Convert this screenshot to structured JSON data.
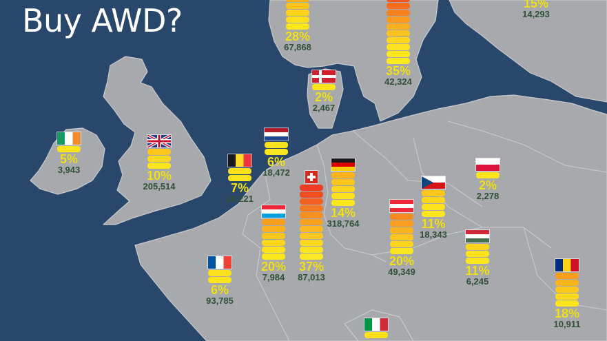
{
  "title": "Buy AWD?",
  "colors": {
    "sea": "#29476b",
    "land": "#a7a9ac",
    "border": "#c9cbce",
    "pct": "#f2e21a",
    "count": "#2f5036"
  },
  "countries": [
    {
      "id": "norway",
      "pct": "28%",
      "count": "67,868",
      "bar_level": 0.28
    },
    {
      "id": "sweden",
      "pct": "35%",
      "count": "42,324",
      "bar_level": 0.35
    },
    {
      "id": "finland",
      "pct": "15%",
      "count": "14,293",
      "bar_level": 0.15
    },
    {
      "id": "denmark",
      "pct": "2%",
      "count": "2,467",
      "bar_level": 0.02
    },
    {
      "id": "ireland",
      "pct": "5%",
      "count": "3,943",
      "bar_level": 0.05
    },
    {
      "id": "uk",
      "pct": "10%",
      "count": "205,514",
      "bar_level": 0.1
    },
    {
      "id": "netherlands",
      "pct": "6%",
      "count": "18,472",
      "bar_level": 0.06
    },
    {
      "id": "belgium",
      "pct": "7%",
      "count": "28,221",
      "bar_level": 0.07
    },
    {
      "id": "luxembourg",
      "pct": "20%",
      "count": "7,984",
      "bar_level": 0.2
    },
    {
      "id": "switzerland",
      "pct": "37%",
      "count": "87,013",
      "bar_level": 0.37
    },
    {
      "id": "germany",
      "pct": "14%",
      "count": "318,764",
      "bar_level": 0.14
    },
    {
      "id": "austria",
      "pct": "20%",
      "count": "49,349",
      "bar_level": 0.2
    },
    {
      "id": "czech",
      "pct": "11%",
      "count": "18,343",
      "bar_level": 0.11
    },
    {
      "id": "poland",
      "pct": "2%",
      "count": "2,278",
      "bar_level": 0.02
    },
    {
      "id": "hungary",
      "pct": "11%",
      "count": "6,245",
      "bar_level": 0.11
    },
    {
      "id": "france",
      "pct": "6%",
      "count": "93,785",
      "bar_level": 0.06
    },
    {
      "id": "romania",
      "pct": "18%",
      "count": "10,911",
      "bar_level": 0.18
    },
    {
      "id": "italy",
      "pct": "",
      "count": "",
      "bar_level": null
    }
  ]
}
